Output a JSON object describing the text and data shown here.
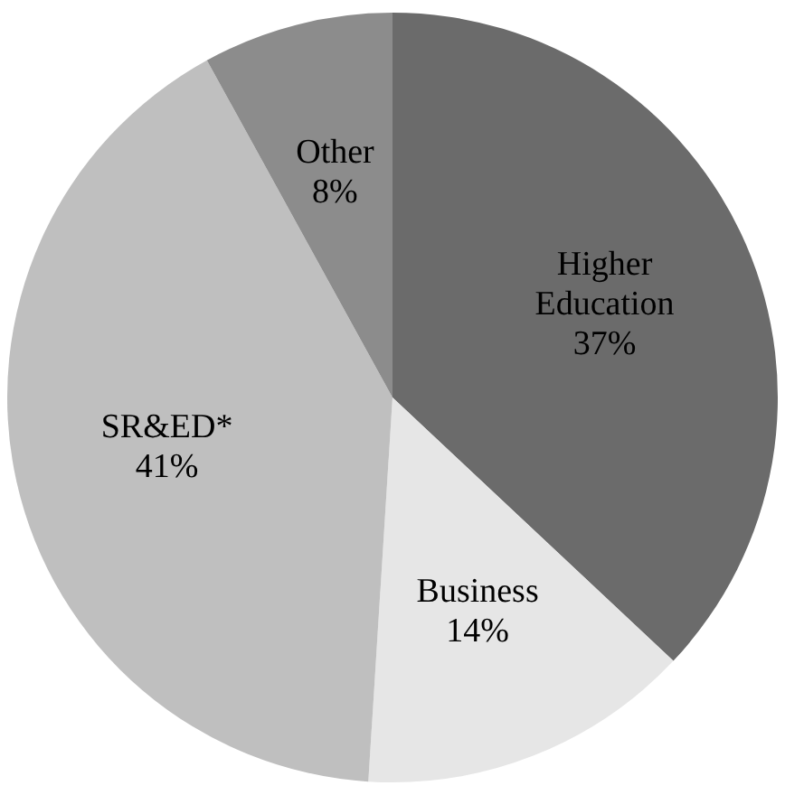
{
  "chart_data": {
    "type": "pie",
    "categories": [
      "Higher Education",
      "Business",
      "SR&ED*",
      "Other"
    ],
    "values": [
      37,
      14,
      41,
      8
    ],
    "value_labels": [
      "37%",
      "14%",
      "41%",
      "8%"
    ],
    "colors": [
      "#6b6b6b",
      "#e6e6e6",
      "#bfbfbf",
      "#8c8c8c"
    ],
    "legend": false
  }
}
